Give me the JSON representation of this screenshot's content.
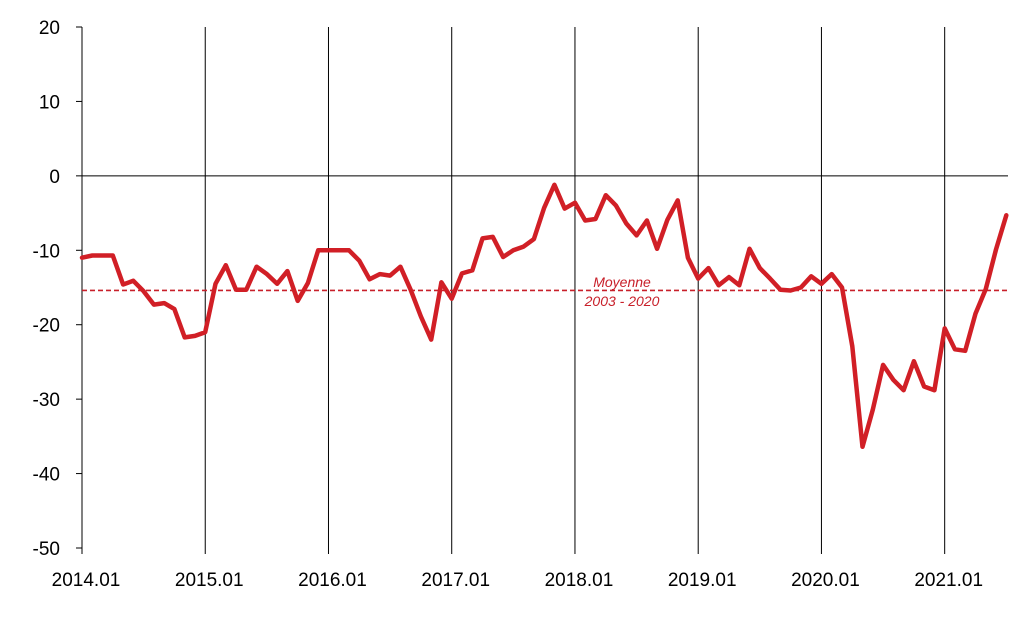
{
  "chart_data": {
    "type": "line",
    "title": "",
    "xlabel": "",
    "ylabel": "",
    "ylim": [
      -50,
      20
    ],
    "yticks": [
      "20",
      "10",
      "0",
      "-10",
      "-20",
      "-30",
      "-40",
      "-50"
    ],
    "xticks": [
      "2014.01",
      "2015.01",
      "2016.01",
      "2017.01",
      "2018.01",
      "2019.01",
      "2020.01",
      "2021.01"
    ],
    "grid": "vertical lines at each January",
    "x_start": "2014.01",
    "x_frequency": "monthly",
    "series": [
      {
        "color": "#d11f26",
        "values": [
          -11,
          -10.7,
          -10.7,
          -10.7,
          -14.6,
          -14.1,
          -15.5,
          -17.3,
          -17.1,
          -17.9,
          -21.7,
          -21.5,
          -21,
          -14.5,
          -12,
          -15.3,
          -15.3,
          -12.2,
          -13.2,
          -14.5,
          -12.8,
          -16.8,
          -14.4,
          -10,
          -10,
          -10,
          -10,
          -11.4,
          -13.9,
          -13.2,
          -13.4,
          -12.2,
          -15.3,
          -18.9,
          -22,
          -14.3,
          -16.5,
          -13.1,
          -12.7,
          -8.4,
          -8.2,
          -10.9,
          -10,
          -9.5,
          -8.5,
          -4.3,
          -1.2,
          -4.4,
          -3.6,
          -6,
          -5.8,
          -2.6,
          -4,
          -6.4,
          -8,
          -6,
          -9.8,
          -5.9,
          -3.3,
          -11,
          -13.8,
          -12.4,
          -14.7,
          -13.6,
          -14.7,
          -9.8,
          -12.4,
          -13.8,
          -15.3,
          -15.4,
          -15,
          -13.5,
          -14.5,
          -13.2,
          -15,
          -22.9,
          -36.4,
          -31.4,
          -25.4,
          -27.4,
          -28.8,
          -24.9,
          -28.3,
          -28.8,
          -20.5,
          -23.3,
          -23.5,
          -18.5,
          -15.2,
          -9.9,
          -5.3
        ]
      }
    ],
    "reference_line": {
      "value": -15.4,
      "color": "#c8202a",
      "label_line1": "Moyenne",
      "label_line2": "2003 - 2020"
    }
  }
}
